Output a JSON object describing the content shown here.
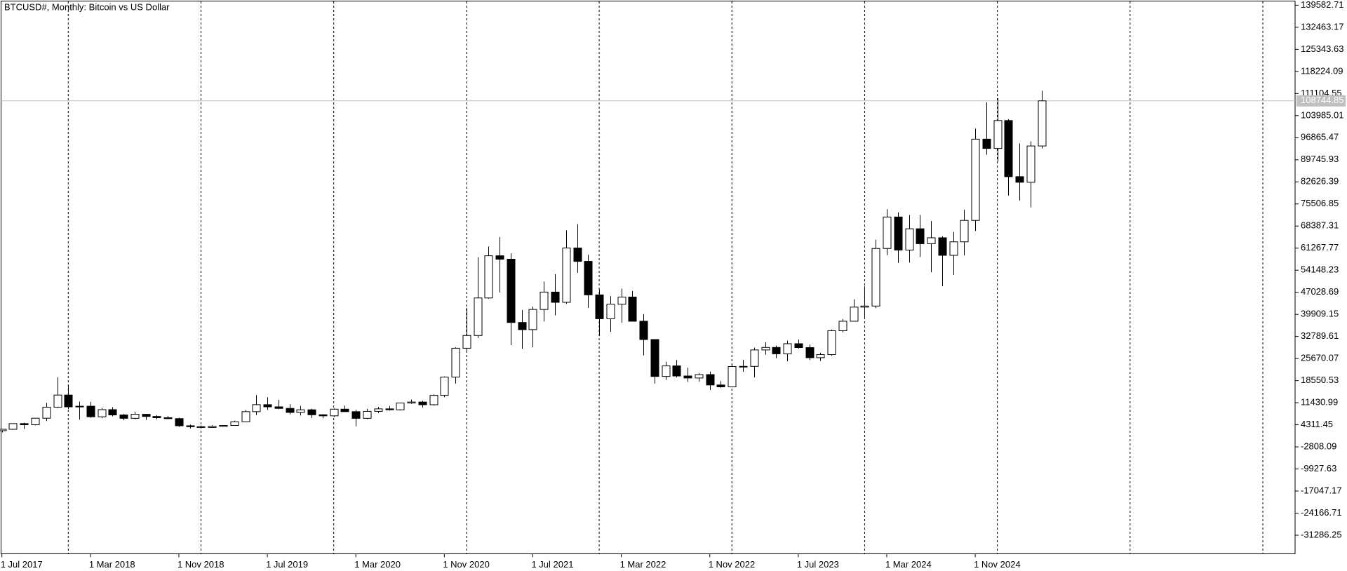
{
  "chart_data": {
    "type": "candlestick",
    "title": "BTCUSD#, Monthly:  Bitcoin vs US Dollar",
    "categories": [
      "1 Jul 2017",
      null,
      null,
      null,
      null,
      null,
      null,
      null,
      "1 Mar 2018",
      null,
      null,
      null,
      null,
      null,
      null,
      null,
      "1 Nov 2018",
      null,
      null,
      null,
      null,
      null,
      null,
      null,
      "1 Jul 2019",
      null,
      null,
      null,
      null,
      null,
      null,
      null,
      "1 Mar 2020",
      null,
      null,
      null,
      null,
      null,
      null,
      null,
      "1 Nov 2020",
      null,
      null,
      null,
      null,
      null,
      null,
      null,
      "1 Jul 2021",
      null,
      null,
      null,
      null,
      null,
      null,
      null,
      "1 Mar 2022",
      null,
      null,
      null,
      null,
      null,
      null,
      null,
      "1 Nov 2022",
      null,
      null,
      null,
      null,
      null,
      null,
      null,
      "1 Jul 2023",
      null,
      null,
      null,
      null,
      null,
      null,
      null,
      "1 Mar 2024",
      null,
      null,
      null,
      null,
      null,
      null,
      null,
      "1 Nov 2024",
      null,
      null,
      null,
      null,
      null,
      null
    ],
    "open": [
      2420,
      2870,
      4700,
      4340,
      6440,
      10000,
      13900,
      10100,
      10300,
      6900,
      9200,
      7500,
      6400,
      7700,
      7000,
      6600,
      6300,
      4000,
      3700,
      3450,
      3800,
      4100,
      5300,
      8550,
      10800,
      10100,
      9600,
      8300,
      9150,
      7550,
      7200,
      9350,
      8550,
      6400,
      8650,
      9450,
      9150,
      11350,
      11650,
      10780,
      13800,
      19700,
      29000,
      33100,
      45200,
      58800,
      57700,
      37300,
      35000,
      41500,
      47100,
      43800,
      61300,
      57000,
      46200,
      38500,
      43200,
      45500,
      37700,
      31800,
      19900,
      23300,
      20050,
      19400,
      20500,
      17150,
      16550,
      23100,
      23150,
      28450,
      29250,
      27200,
      30450,
      29200,
      25950,
      26950,
      34650,
      37700,
      42250,
      42600,
      61150,
      71300,
      60650,
      67500,
      62700,
      64600,
      58950,
      63300,
      70200,
      96400,
      93400,
      102400,
      84300,
      82500,
      94200
    ],
    "high": [
      2950,
      4750,
      4980,
      6470,
      11400,
      19650,
      17100,
      11800,
      11700,
      9780,
      10000,
      7780,
      8500,
      7760,
      7400,
      7100,
      6580,
      4400,
      4100,
      4200,
      4110,
      5650,
      9080,
      13880,
      13200,
      12350,
      10950,
      10400,
      9500,
      7750,
      9580,
      10500,
      9190,
      9460,
      10080,
      10400,
      11450,
      12480,
      12080,
      14100,
      19900,
      29300,
      41950,
      58350,
      61800,
      64850,
      59600,
      41330,
      42400,
      50500,
      52900,
      67000,
      69000,
      59100,
      47950,
      45800,
      48200,
      47450,
      40000,
      31900,
      24650,
      25200,
      22700,
      21000,
      21450,
      18400,
      23950,
      25250,
      29200,
      30950,
      29850,
      31400,
      31800,
      30200,
      27500,
      35000,
      38450,
      44750,
      48950,
      64000,
      73800,
      72800,
      71950,
      71950,
      70000,
      65100,
      66500,
      73600,
      99800,
      108300,
      109600,
      102800,
      95000,
      95700,
      112000
    ],
    "low": [
      1830,
      2680,
      2970,
      4110,
      5520,
      9750,
      9400,
      6000,
      6580,
      6430,
      7050,
      5770,
      6100,
      5880,
      6100,
      6200,
      3650,
      3150,
      3350,
      3380,
      3670,
      4060,
      5300,
      7450,
      9100,
      9350,
      7700,
      7300,
      6520,
      6430,
      6850,
      8450,
      3800,
      6150,
      8110,
      8900,
      8950,
      11100,
      9850,
      10520,
      13200,
      17600,
      28200,
      32300,
      44950,
      47000,
      30000,
      28800,
      29300,
      37600,
      39600,
      43300,
      53300,
      42000,
      32950,
      34300,
      37200,
      37600,
      26700,
      17600,
      18800,
      19600,
      18150,
      18200,
      15500,
      16300,
      16500,
      21400,
      19600,
      26900,
      25850,
      24800,
      28900,
      25150,
      24900,
      26550,
      34100,
      37600,
      38500,
      41900,
      59000,
      56500,
      56600,
      58400,
      53500,
      49000,
      52600,
      58900,
      66800,
      91400,
      89200,
      78200,
      76600,
      74400,
      93400
    ],
    "close": [
      2870,
      4700,
      4340,
      6440,
      10000,
      13900,
      10100,
      10300,
      6900,
      9200,
      7500,
      6400,
      7700,
      7000,
      6600,
      6300,
      4000,
      3700,
      3450,
      3800,
      4100,
      5300,
      8550,
      10800,
      10100,
      9600,
      8300,
      9150,
      7550,
      7200,
      9350,
      8550,
      6400,
      8650,
      9450,
      9150,
      11350,
      11650,
      10780,
      13800,
      19700,
      29000,
      33100,
      45200,
      58800,
      57700,
      37300,
      35000,
      41500,
      47100,
      43800,
      61300,
      57000,
      46200,
      38500,
      43200,
      45500,
      37700,
      31800,
      19900,
      23300,
      20050,
      19400,
      20500,
      17150,
      16550,
      23100,
      23150,
      28450,
      29250,
      27200,
      30450,
      29200,
      25950,
      26950,
      34650,
      37700,
      42250,
      42600,
      61150,
      71300,
      60650,
      67500,
      62700,
      64600,
      58950,
      63300,
      70200,
      96400,
      93400,
      102400,
      84300,
      82500,
      94200,
      108744.85
    ],
    "up_color": "#ffffff",
    "down_color": "#000000",
    "current_price": 108744.85,
    "ylim": [
      -37255,
      141256
    ],
    "yticks": [
      139582.71,
      132463.17,
      125343.63,
      118224.09,
      111104.55,
      103985.01,
      96865.47,
      89745.93,
      82626.39,
      75506.85,
      68387.31,
      61267.77,
      54148.23,
      47028.69,
      39909.15,
      32789.61,
      25670.07,
      18550.53,
      11430.99,
      4311.45,
      -2808.09,
      -9927.63,
      -17047.17,
      -24166.71,
      -31286.25
    ],
    "period_separators": true
  }
}
